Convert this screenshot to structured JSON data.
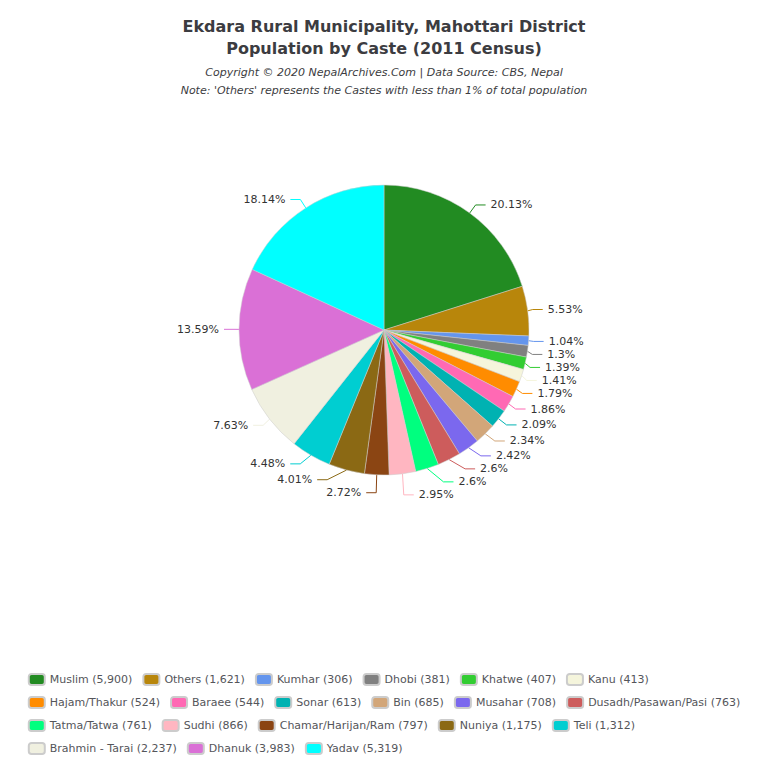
{
  "chart_data": {
    "type": "pie",
    "title": "Ekdara Rural Municipality, Mahottari District\nPopulation by Caste (2011 Census)",
    "annotations": [
      "Copyright © 2020 NepalArchives.Com | Data Source: CBS, Nepal",
      "Note: 'Others' represents the Castes with less than 1% of total population"
    ],
    "categories": [
      "Muslim (5,900)",
      "Others (1,621)",
      "Kumhar (306)",
      "Dhobi (381)",
      "Khatwe (407)",
      "Kanu (413)",
      "Hajam/Thakur (524)",
      "Baraee (544)",
      "Sonar (613)",
      "Bin (685)",
      "Musahar (708)",
      "Dusadh/Pasawan/Pasi (763)",
      "Tatma/Tatwa (761)",
      "Sudhi (866)",
      "Chamar/Harijan/Ram (797)",
      "Nuniya (1,175)",
      "Teli (1,312)",
      "Brahmin - Tarai (2,237)",
      "Dhanuk (3,983)",
      "Yadav (5,319)"
    ],
    "values": [
      20.13,
      5.53,
      1.04,
      1.3,
      1.39,
      1.41,
      1.79,
      1.86,
      2.09,
      2.34,
      2.42,
      2.6,
      2.6,
      2.95,
      2.72,
      4.01,
      4.48,
      7.63,
      13.59,
      18.14
    ],
    "value_labels": [
      "20.13%",
      "5.53%",
      "1.04%",
      "1.3%",
      "1.39%",
      "1.41%",
      "1.79%",
      "1.86%",
      "2.09%",
      "2.34%",
      "2.42%",
      "2.6%",
      "2.6%",
      "2.95%",
      "2.72%",
      "4.01%",
      "4.48%",
      "7.63%",
      "13.59%",
      "18.14%"
    ],
    "colors": [
      "#228B22",
      "#B8860B",
      "#6495ED",
      "#808080",
      "#32CD32",
      "#F5F5DC",
      "#FF8C00",
      "#FF69B4",
      "#00B2B2",
      "#D2A679",
      "#7B68EE",
      "#CD5C5C",
      "#00FF7F",
      "#FFB6C1",
      "#8B4513",
      "#8B6914",
      "#00CED1",
      "#F0F0E0",
      "#DA70D6",
      "#00FFFF"
    ],
    "data_labels": true,
    "legend": "bottom"
  }
}
